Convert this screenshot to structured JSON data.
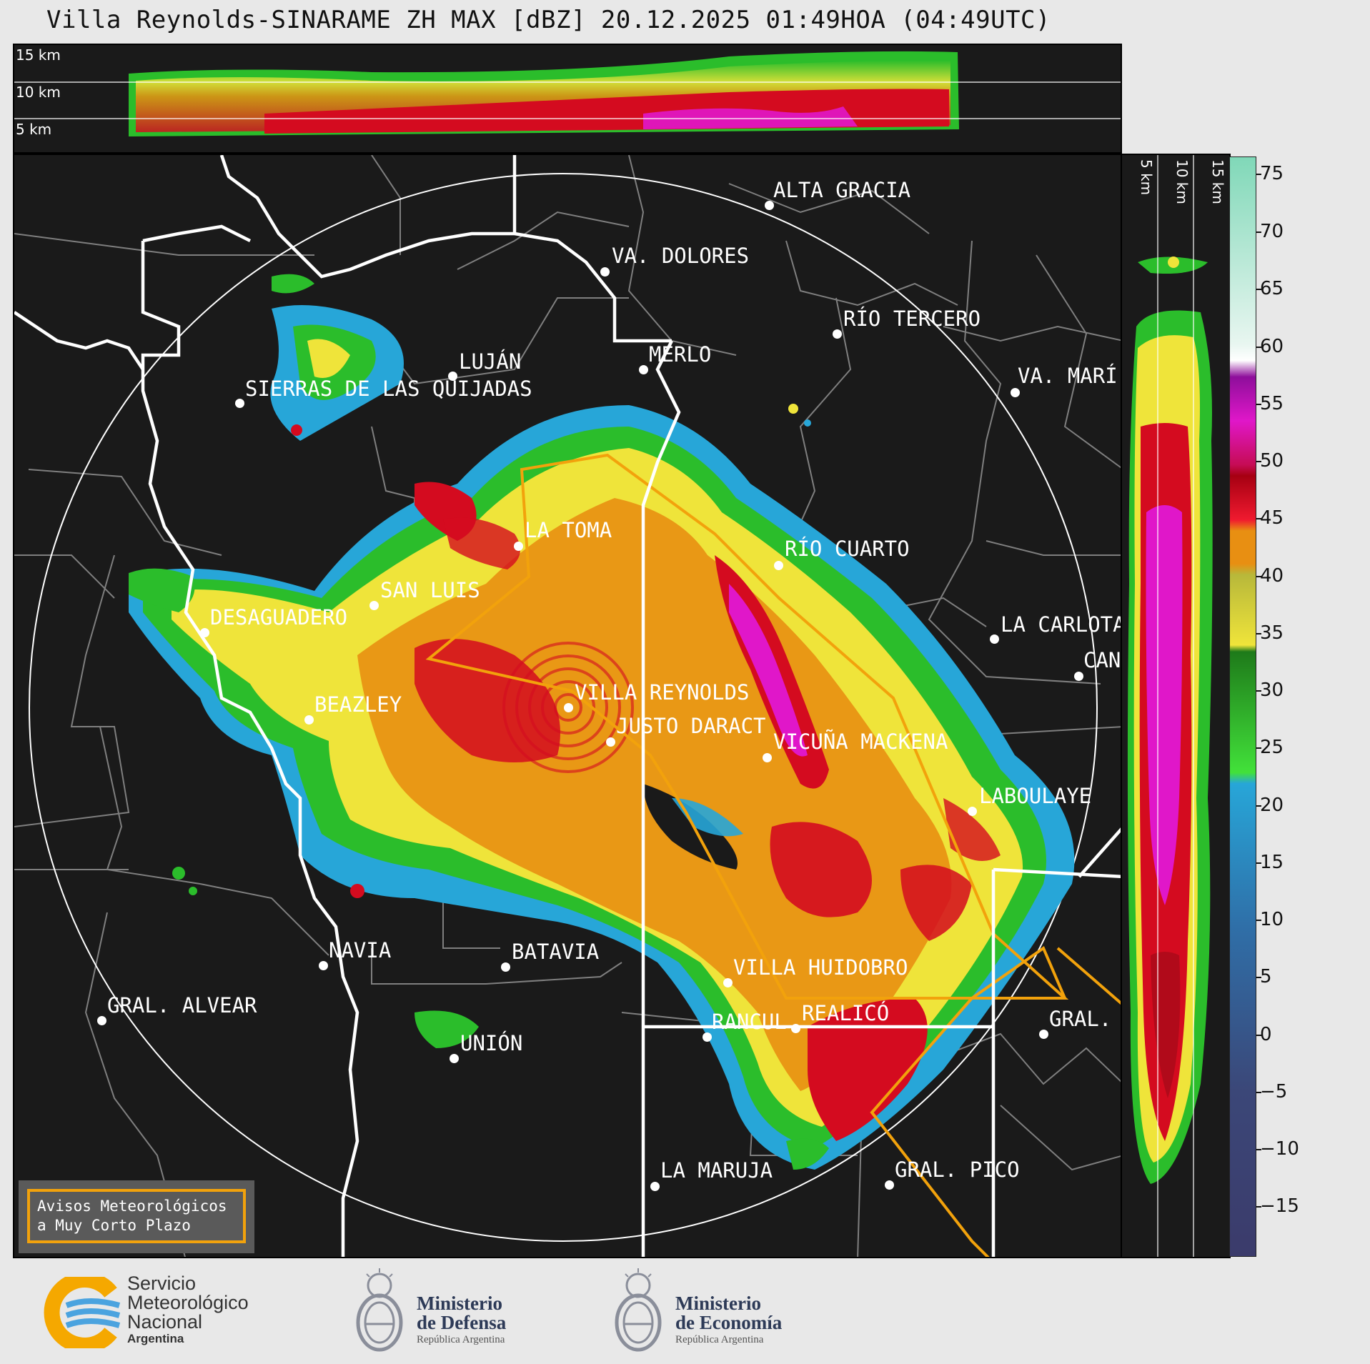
{
  "title": "Villa Reynolds-SINARAME ZH MAX [dBZ] 20.12.2025 01:49HOA (04:49UTC)",
  "top_panel": {
    "labels": [
      "15 km",
      "10 km",
      "5 km"
    ]
  },
  "side_panel": {
    "labels": [
      "5 km",
      "10 km",
      "15 km"
    ]
  },
  "colorbar": {
    "unit": "dBZ",
    "ticks": [
      "75",
      "70",
      "65",
      "60",
      "55",
      "50",
      "45",
      "40",
      "35",
      "30",
      "25",
      "20",
      "15",
      "10",
      "5",
      "0",
      "−5",
      "−10",
      "−15"
    ],
    "colors": {
      "blue": "#3b4778",
      "cyan": "#27a6d8",
      "green": "#2bbd2b",
      "yellow": "#efe43a",
      "orange": "#e88f12",
      "red": "#d40b1f",
      "magenta": "#e017c9",
      "purple": "#8e0e9b",
      "white": "#ffffff",
      "mint": "#80d8b8"
    }
  },
  "cities": [
    {
      "name": "ALTA GRACIA"
    },
    {
      "name": "VA. DOLORES"
    },
    {
      "name": "RÍO TERCERO"
    },
    {
      "name": "LUJÁN"
    },
    {
      "name": "MERLO"
    },
    {
      "name": "SIERRAS DE LAS QUIJADAS"
    },
    {
      "name": "VA. MARÍ"
    },
    {
      "name": "LA TOMA"
    },
    {
      "name": "RÍO CUARTO"
    },
    {
      "name": "SAN LUIS"
    },
    {
      "name": "DESAGUADERO"
    },
    {
      "name": "LA CARLOTA"
    },
    {
      "name": "CAN"
    },
    {
      "name": "VILLA REYNOLDS"
    },
    {
      "name": "BEAZLEY"
    },
    {
      "name": "JUSTO DARACT"
    },
    {
      "name": "VICUÑA MACKENA"
    },
    {
      "name": "LABOULAYE"
    },
    {
      "name": "NAVIA"
    },
    {
      "name": "BATAVIA"
    },
    {
      "name": "VILLA HUIDOBRO"
    },
    {
      "name": "GRAL. ALVEAR"
    },
    {
      "name": "RANCUL"
    },
    {
      "name": "REALICÓ"
    },
    {
      "name": "GRAL."
    },
    {
      "name": "UNIÓN"
    },
    {
      "name": "LA MARUJA"
    },
    {
      "name": "GRAL. PICO"
    }
  ],
  "aviso": {
    "line1": "Avisos Meteorológicos",
    "line2": "a Muy Corto Plazo"
  },
  "footer": {
    "smn": {
      "line1": "Servicio",
      "line2": "Meteorológico",
      "line3": "Nacional",
      "line4": "Argentina"
    },
    "defensa": {
      "line1": "Ministerio",
      "line2": "de Defensa",
      "line3": "República Argentina"
    },
    "economia": {
      "line1": "Ministerio",
      "line2": "de Economía",
      "line3": "República Argentina"
    }
  },
  "colors": {
    "background": "#1a1a1a",
    "warning_outline": "#f2a20c",
    "boundary": "#ffffff",
    "department": "#7f7f7f"
  }
}
